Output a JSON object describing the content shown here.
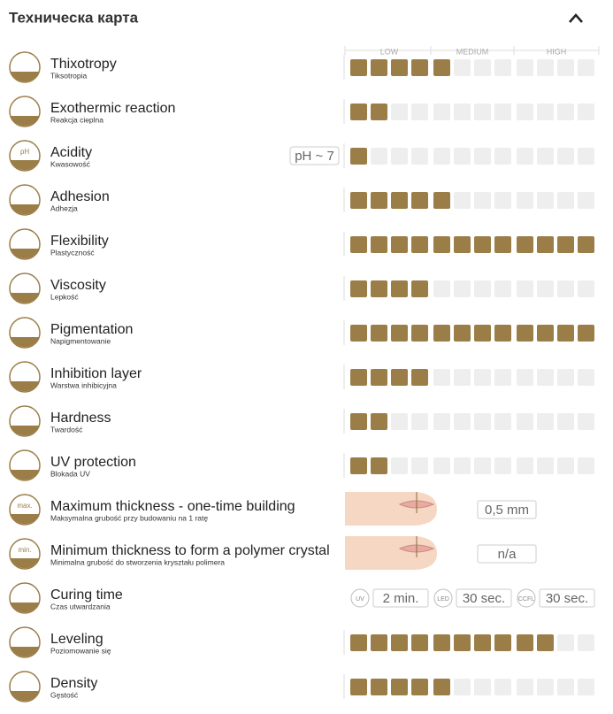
{
  "header": {
    "title": "Техническа карта"
  },
  "scale": [
    "LOW",
    "MEDIUM",
    "HIGH"
  ],
  "rows": [
    {
      "name": "Thixotropy",
      "subtitle": "Tiksotropia",
      "level": 5
    },
    {
      "name": "Exothermic reaction",
      "subtitle": "Reakcja cieplna",
      "level": 2
    },
    {
      "name": "Acidity",
      "subtitle": "Kwasowość",
      "level": 1,
      "badge": "pH ~ 7",
      "icon_text": "pH"
    },
    {
      "name": "Adhesion",
      "subtitle": "Adhezja",
      "level": 5
    },
    {
      "name": "Flexibility",
      "subtitle": "Plastyczność",
      "level": 12
    },
    {
      "name": "Viscosity",
      "subtitle": "Lepkość",
      "level": 4
    },
    {
      "name": "Pigmentation",
      "subtitle": "Napigmentowanie",
      "level": 12
    },
    {
      "name": "Inhibition layer",
      "subtitle": "Warstwa inhibicyjna",
      "level": 4
    },
    {
      "name": "Hardness",
      "subtitle": "Twardość",
      "level": 2
    },
    {
      "name": "UV protection",
      "subtitle": "Blokada UV",
      "level": 2
    },
    {
      "name": "Maximum thickness - one-time building",
      "subtitle": "Maksymalna grubość przy budowaniu na 1 ratę",
      "icon_text": "max.",
      "value": "0,5 mm"
    },
    {
      "name": "Minimum thickness to form a polymer crystal",
      "subtitle": "Minimalna grubość do stworzenia kryształu polimera",
      "icon_text": "min.",
      "value": "n/a"
    },
    {
      "name": "Curing time",
      "subtitle": "Czas utwardzania",
      "curing": [
        {
          "label": "UV",
          "value": "2 min."
        },
        {
          "label": "LED",
          "value": "30 sec."
        },
        {
          "label": "CCFL",
          "value": "30 sec."
        }
      ]
    },
    {
      "name": "Leveling",
      "subtitle": "Poziomowanie się",
      "level": 10
    },
    {
      "name": "Density",
      "subtitle": "Gęstość",
      "level": 5
    }
  ]
}
